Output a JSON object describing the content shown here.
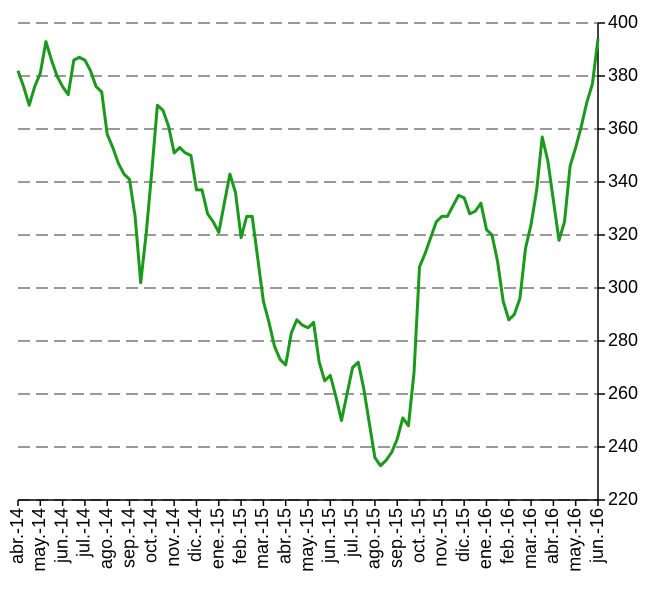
{
  "chart_data": {
    "type": "line",
    "categories": [
      "abr.-14",
      null,
      null,
      null,
      "may.-14",
      null,
      null,
      null,
      "jun.-14",
      null,
      null,
      null,
      "jul.-14",
      null,
      null,
      null,
      "ago.-14",
      null,
      null,
      null,
      "sep.-14",
      null,
      null,
      null,
      "oct.-14",
      null,
      null,
      null,
      "nov.-14",
      null,
      null,
      null,
      "dic.-14",
      null,
      null,
      null,
      "ene.-15",
      null,
      null,
      null,
      "feb.-15",
      null,
      null,
      null,
      "mar.-15",
      null,
      null,
      null,
      "abr.-15",
      null,
      null,
      null,
      "may.-15",
      null,
      null,
      null,
      "jun.-15",
      null,
      null,
      null,
      "jul.-15",
      null,
      null,
      null,
      "ago.-15",
      null,
      null,
      null,
      "sep.-15",
      null,
      null,
      null,
      "oct.-15",
      null,
      null,
      null,
      "nov.-15",
      null,
      null,
      null,
      "dic.-15",
      null,
      null,
      null,
      "ene.-16",
      null,
      null,
      null,
      "feb.-16",
      null,
      null,
      null,
      "mar.-16",
      null,
      null,
      null,
      "abr.-16",
      null,
      null,
      null,
      "may.-16",
      null,
      null,
      null,
      "jun.-16"
    ],
    "series": [
      {
        "color": "#1a9a1a",
        "values": [
          382,
          376,
          369,
          376,
          381,
          393,
          386,
          380,
          376,
          373,
          386,
          387,
          386,
          382,
          376,
          374,
          358,
          353,
          347,
          343,
          341,
          327,
          302,
          321,
          344,
          369,
          367,
          361,
          351,
          353,
          351,
          350,
          337,
          337,
          328,
          325,
          321,
          332,
          343,
          336,
          319,
          327,
          327,
          311,
          295,
          287,
          278,
          273,
          271,
          283,
          288,
          286,
          285,
          287,
          272,
          265,
          267,
          259,
          250,
          260,
          270,
          272,
          262,
          249,
          236,
          233,
          235,
          238,
          243,
          251,
          248,
          268,
          308,
          313,
          319,
          325,
          327,
          327,
          331,
          335,
          334,
          328,
          329,
          332,
          322,
          320,
          310,
          295,
          288,
          290,
          296,
          315,
          324,
          337,
          357,
          348,
          333,
          318,
          325,
          346,
          353,
          361,
          370,
          377,
          394
        ]
      }
    ],
    "ylim": [
      220,
      400
    ],
    "yticks": [
      220,
      240,
      260,
      280,
      300,
      320,
      340,
      360,
      380,
      400
    ],
    "grid": true
  }
}
